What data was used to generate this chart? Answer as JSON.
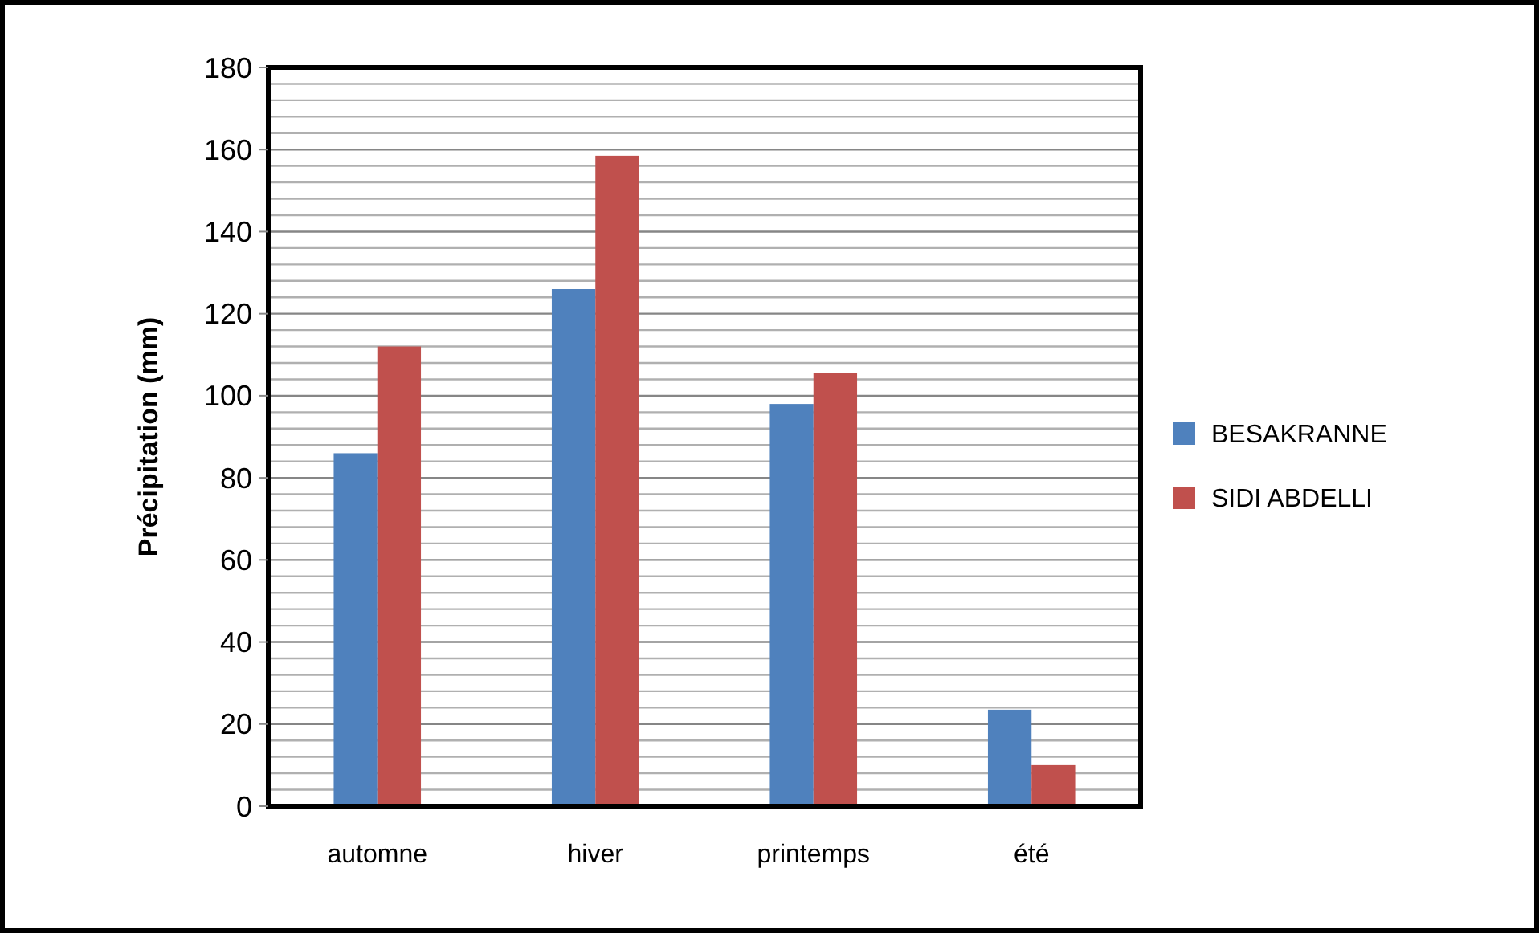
{
  "chart_data": {
    "type": "bar",
    "ylabel": "Précipitation (mm)",
    "categories": [
      "automne",
      "hiver",
      "printemps",
      "été"
    ],
    "series": [
      {
        "name": "BESAKRANNE",
        "color": "#4f81bd",
        "values": [
          86,
          126,
          98,
          23.5
        ]
      },
      {
        "name": "SIDI ABDELLI",
        "color": "#c0504d",
        "values": [
          112,
          158.5,
          105.5,
          10
        ]
      }
    ],
    "ylim": [
      0,
      180
    ],
    "yticks": [
      0,
      {
        "value": 4,
        "label": null
      },
      {
        "value": 8,
        "label": null
      },
      {
        "value": 12,
        "label": null
      },
      {
        "value": 16,
        "label": null
      },
      20,
      {
        "value": 24,
        "label": null
      },
      {
        "value": 28,
        "label": null
      },
      {
        "value": 32,
        "label": null
      },
      {
        "value": 36,
        "label": null
      },
      40,
      {
        "value": 44,
        "label": null
      },
      {
        "value": 48,
        "label": null
      },
      {
        "value": 52,
        "label": null
      },
      {
        "value": 56,
        "label": null
      },
      60,
      {
        "value": 64,
        "label": null
      },
      {
        "value": 68,
        "label": null
      },
      {
        "value": 72,
        "label": null
      },
      {
        "value": 76,
        "label": null
      },
      80,
      {
        "value": 84,
        "label": null
      },
      {
        "value": 88,
        "label": null
      },
      {
        "value": 92,
        "label": null
      },
      {
        "value": 96,
        "label": null
      },
      100,
      {
        "value": 104,
        "label": null
      },
      {
        "value": 108,
        "label": null
      },
      {
        "value": 112,
        "label": null
      },
      {
        "value": 116,
        "label": null
      },
      120,
      {
        "value": 124,
        "label": null
      },
      {
        "value": 128,
        "label": null
      },
      {
        "value": 132,
        "label": null
      },
      {
        "value": 136,
        "label": null
      },
      140,
      {
        "value": 144,
        "label": null
      },
      {
        "value": 148,
        "label": null
      },
      {
        "value": 152,
        "label": null
      },
      {
        "value": 156,
        "label": null
      },
      160,
      {
        "value": 164,
        "label": null
      },
      {
        "value": 168,
        "label": null
      },
      {
        "value": 172,
        "label": null
      },
      {
        "value": 176,
        "label": null
      },
      180
    ],
    "grid": true,
    "legend": "right"
  }
}
